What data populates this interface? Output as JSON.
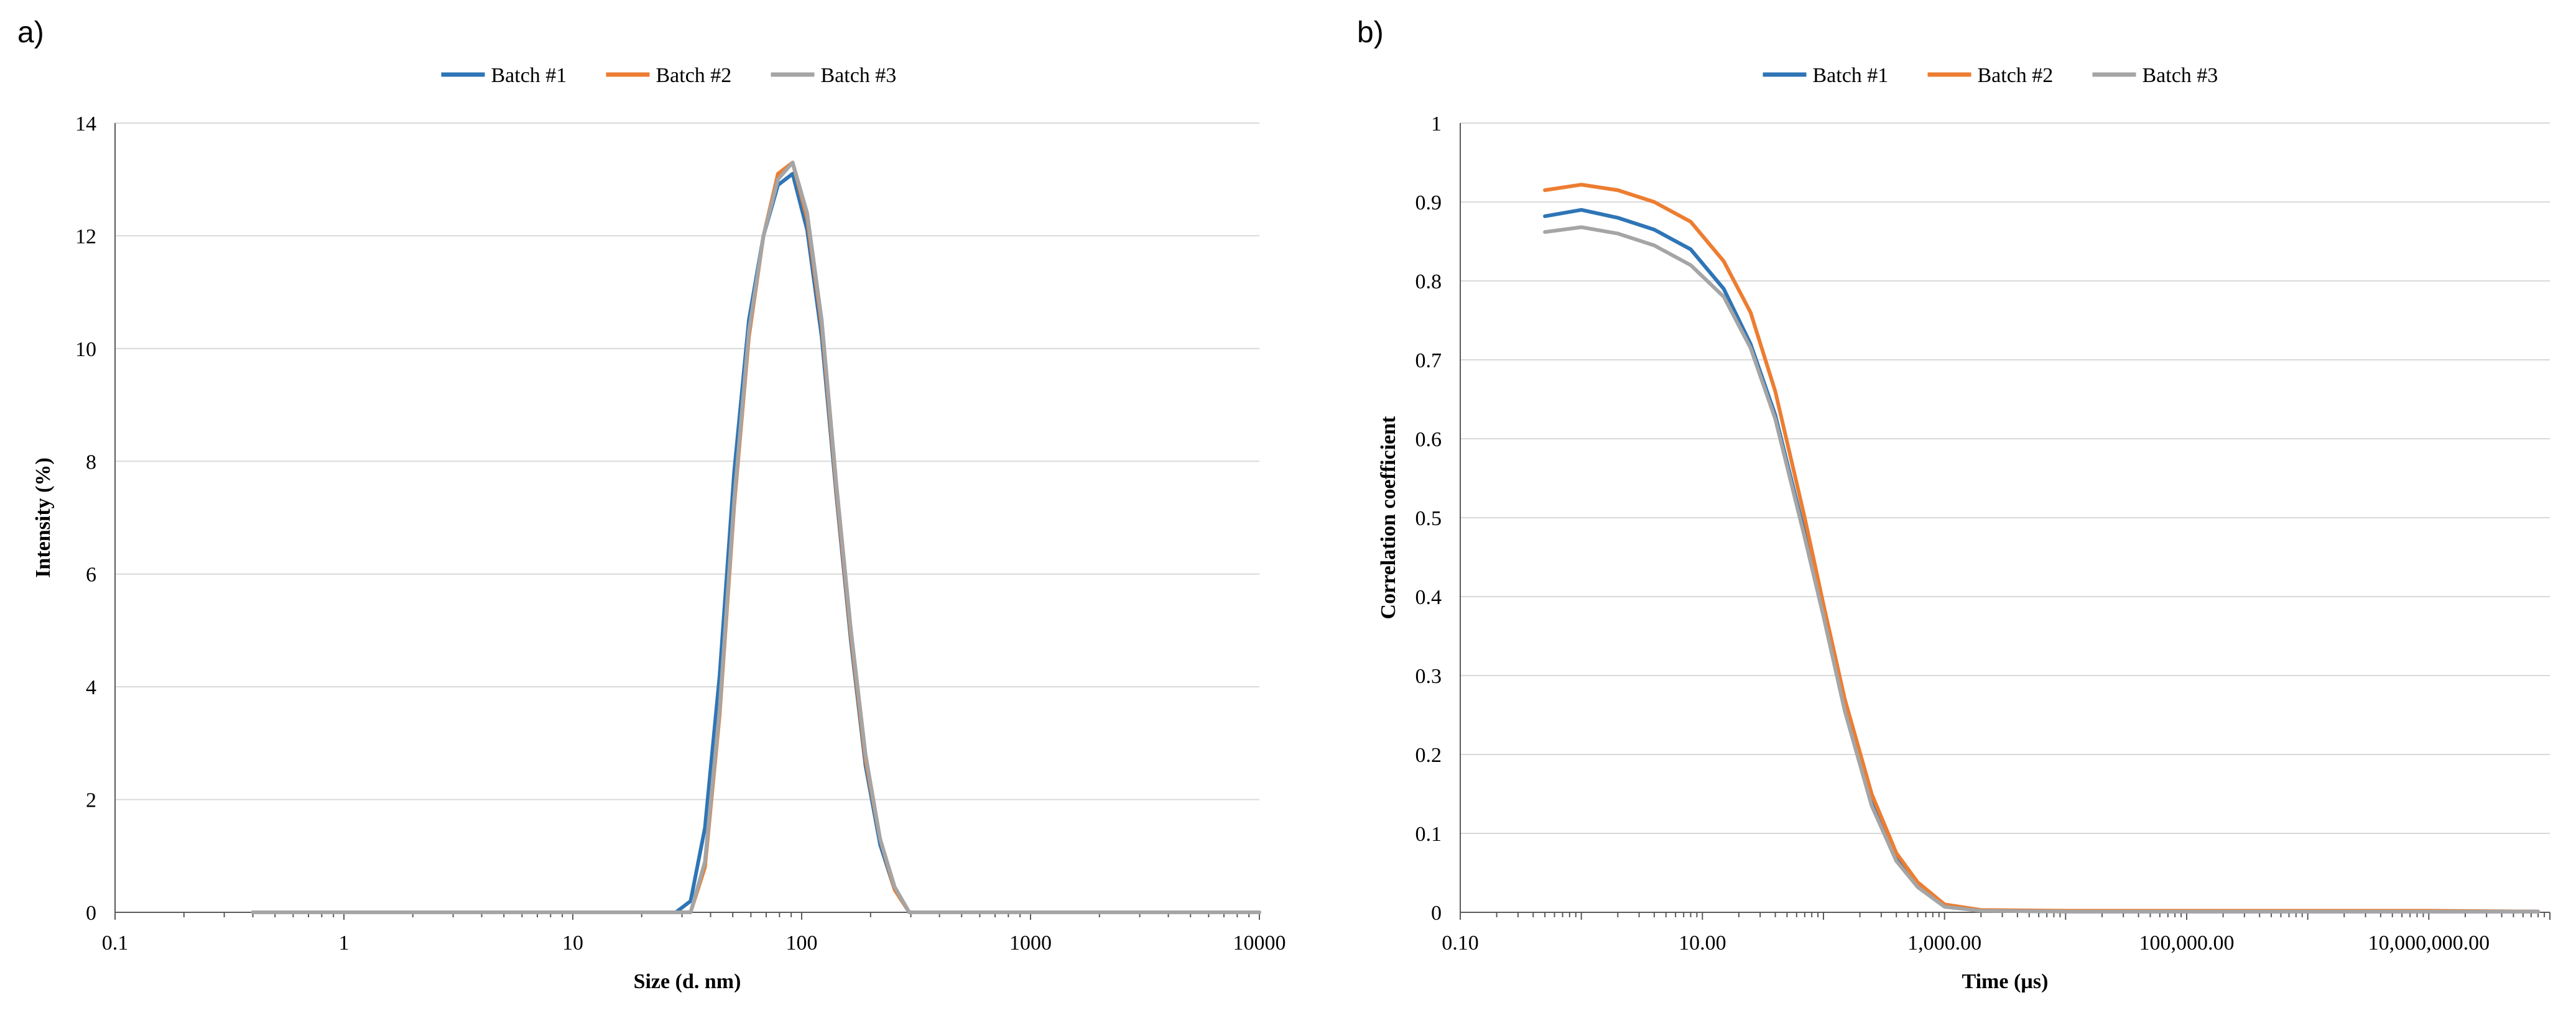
{
  "chart_data": [
    {
      "panel_label": "a)",
      "type": "line",
      "xscale": "log",
      "xlim": [
        0.1,
        10000
      ],
      "ylim": [
        0,
        14
      ],
      "xlabel": "Size (d. nm)",
      "ylabel": "Intensity (%)",
      "xticks": [
        0.1,
        1,
        10,
        100,
        1000,
        10000
      ],
      "xtick_labels": [
        "0.1",
        "1",
        "10",
        "100",
        "1000",
        "10000"
      ],
      "yticks": [
        0,
        2,
        4,
        6,
        8,
        10,
        12,
        14
      ],
      "ytick_labels": [
        "0",
        "2",
        "4",
        "6",
        "8",
        "10",
        "12",
        "14"
      ],
      "grid": "horizontal",
      "legend_position": "top",
      "series": [
        {
          "name": "Batch #1",
          "color": "#2e75b6",
          "x": [
            0.4,
            10,
            28.2,
            32.7,
            37.8,
            43.8,
            50.7,
            58.8,
            68.1,
            78.8,
            91.3,
            105.7,
            122.4,
            141.8,
            164.2,
            190.1,
            220.2,
            255.0,
            295.3,
            342,
            10000
          ],
          "y": [
            0,
            0,
            0,
            0.2,
            1.5,
            4.2,
            7.8,
            10.5,
            12.0,
            12.9,
            13.1,
            12.1,
            10.2,
            7.4,
            4.8,
            2.6,
            1.2,
            0.4,
            0,
            0,
            0
          ]
        },
        {
          "name": "Batch #2",
          "color": "#ed7d31",
          "x": [
            0.4,
            10,
            28.2,
            32.7,
            37.8,
            43.8,
            50.7,
            58.8,
            68.1,
            78.8,
            91.3,
            105.7,
            122.4,
            141.8,
            164.2,
            190.1,
            220.2,
            255.0,
            295.3,
            342,
            10000
          ],
          "y": [
            0,
            0,
            0,
            0,
            0.8,
            3.5,
            7.2,
            10.2,
            12.0,
            13.1,
            13.3,
            12.3,
            10.4,
            7.5,
            4.9,
            2.7,
            1.3,
            0.4,
            0,
            0,
            0
          ]
        },
        {
          "name": "Batch #3",
          "color": "#a5a5a5",
          "x": [
            0.4,
            10,
            28.2,
            32.7,
            37.8,
            43.8,
            50.7,
            58.8,
            68.1,
            78.8,
            91.3,
            105.7,
            122.4,
            141.8,
            164.2,
            190.1,
            220.2,
            255.0,
            295.3,
            342,
            10000
          ],
          "y": [
            0,
            0,
            0,
            0,
            0.9,
            3.6,
            7.3,
            10.3,
            12.0,
            13.0,
            13.3,
            12.4,
            10.5,
            7.6,
            5.0,
            2.8,
            1.3,
            0.45,
            0,
            0,
            0
          ]
        }
      ]
    },
    {
      "panel_label": "b)",
      "type": "line",
      "xscale": "log",
      "xlim": [
        0.1,
        100000000
      ],
      "ylim": [
        0,
        1
      ],
      "xlabel": "Time (µs)",
      "ylabel": "Correlation coefficient",
      "xticks": [
        0.1,
        10,
        1000,
        100000,
        10000000
      ],
      "xtick_labels": [
        "0.10",
        "10.00",
        "1,000.00",
        "100,000.00",
        "10,000,000.00"
      ],
      "yticks": [
        0,
        0.1,
        0.2,
        0.3,
        0.4,
        0.5,
        0.6,
        0.7,
        0.8,
        0.9,
        1
      ],
      "ytick_labels": [
        "0",
        "0.1",
        "0.2",
        "0.3",
        "0.4",
        "0.5",
        "0.6",
        "0.7",
        "0.8",
        "0.9",
        "1"
      ],
      "grid": "horizontal",
      "legend_position": "top",
      "series": [
        {
          "name": "Batch #1",
          "color": "#2e75b6",
          "x": [
            0.5,
            1,
            2,
            4,
            8,
            15,
            25,
            40,
            70,
            100,
            150,
            250,
            400,
            600,
            1000,
            2000,
            10000,
            100000,
            1000000,
            10000000,
            80000000
          ],
          "y": [
            0.882,
            0.89,
            0.88,
            0.865,
            0.84,
            0.79,
            0.72,
            0.63,
            0.48,
            0.38,
            0.26,
            0.14,
            0.07,
            0.035,
            0.008,
            0.002,
            0.001,
            0.001,
            0.001,
            0.001,
            0.001
          ]
        },
        {
          "name": "Batch #2",
          "color": "#ed7d31",
          "x": [
            0.5,
            1,
            2,
            4,
            8,
            15,
            25,
            40,
            70,
            100,
            150,
            250,
            400,
            600,
            1000,
            2000,
            10000,
            100000,
            1000000,
            10000000,
            80000000
          ],
          "y": [
            0.915,
            0.922,
            0.915,
            0.9,
            0.875,
            0.825,
            0.76,
            0.66,
            0.5,
            0.39,
            0.27,
            0.15,
            0.075,
            0.038,
            0.01,
            0.003,
            0.002,
            0.002,
            0.002,
            0.002,
            0.001
          ]
        },
        {
          "name": "Batch #3",
          "color": "#a5a5a5",
          "x": [
            0.5,
            1,
            2,
            4,
            8,
            15,
            25,
            40,
            70,
            100,
            150,
            250,
            400,
            600,
            1000,
            2000,
            10000,
            100000,
            1000000,
            10000000,
            80000000
          ],
          "y": [
            0.862,
            0.868,
            0.86,
            0.845,
            0.82,
            0.78,
            0.715,
            0.625,
            0.475,
            0.375,
            0.255,
            0.135,
            0.065,
            0.032,
            0.007,
            0.002,
            0.001,
            0.001,
            0.001,
            0.001,
            0.001
          ]
        }
      ]
    }
  ]
}
